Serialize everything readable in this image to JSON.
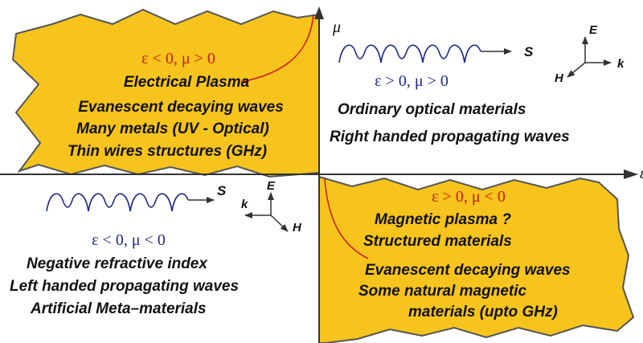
{
  "colors": {
    "fill": "#f6c41c",
    "outline": "#555555",
    "axis": "#333333",
    "heading_text": "#cc1a1a",
    "heading_text_blue": "#1f2a86",
    "body_text": "#111111",
    "curve": "#cc1a1a",
    "wave": "#1f2a86"
  },
  "axes": {
    "y_label": "μ",
    "x_label": "ε"
  },
  "quadrants": {
    "top_left": {
      "condition": "ε < 0, μ > 0",
      "lines": [
        "Electrical Plasma",
        "Evanescent decaying waves",
        "Many metals (UV - Optical)",
        "Thin wires structures (GHz)"
      ]
    },
    "top_right": {
      "condition": "ε > 0, μ > 0",
      "lines": [
        "Ordinary optical materials",
        "Right handed propagating waves"
      ],
      "wave_label": "S",
      "triad": {
        "up": "E",
        "right": "k",
        "diag": "H"
      }
    },
    "bottom_left": {
      "condition": "ε < 0, μ < 0",
      "lines": [
        "Negative refractive index",
        "Left handed propagating waves",
        "Artificial Meta–materials"
      ],
      "wave_label": "S",
      "triad": {
        "up": "E",
        "left": "k",
        "diag": "H"
      }
    },
    "bottom_right": {
      "condition": "ε > 0, μ < 0",
      "lines": [
        "Magnetic plasma ?",
        "Structured materials",
        "Evanescent decaying waves",
        "Some natural magnetic",
        "materials (upto GHz)"
      ]
    }
  }
}
